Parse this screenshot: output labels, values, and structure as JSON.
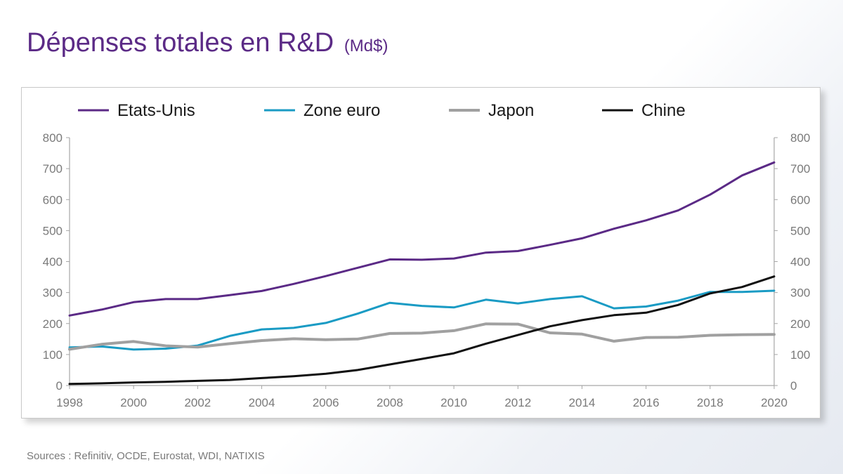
{
  "slide": {
    "title": "Dépenses totales en R&D",
    "title_unit": "(Md$)",
    "sources": "Sources : Refinitiv, OCDE, Eurostat, WDI, NATIXIS"
  },
  "chart_data": {
    "type": "line",
    "title": "Dépenses totales en R&D (Md$)",
    "xlabel": "",
    "ylabel": "",
    "x": [
      1998,
      1999,
      2000,
      2001,
      2002,
      2003,
      2004,
      2005,
      2006,
      2007,
      2008,
      2009,
      2010,
      2011,
      2012,
      2013,
      2014,
      2015,
      2016,
      2017,
      2018,
      2019,
      2020
    ],
    "xticks": [
      "1998",
      "2000",
      "2002",
      "2004",
      "2006",
      "2008",
      "2010",
      "2012",
      "2014",
      "2016",
      "2018",
      "2020"
    ],
    "ylim": [
      0,
      800
    ],
    "yticks": [
      "0",
      "100",
      "200",
      "300",
      "400",
      "500",
      "600",
      "700",
      "800"
    ],
    "legend_position": "top",
    "series": [
      {
        "name": "Etats-Unis",
        "color": "#5b2a86",
        "values": [
          226,
          245,
          269,
          279,
          279,
          292,
          305,
          328,
          353,
          380,
          407,
          406,
          410,
          429,
          434,
          454,
          475,
          506,
          533,
          565,
          616,
          678,
          720
        ]
      },
      {
        "name": "Zone euro",
        "color": "#1a9bc4",
        "values": [
          123,
          126,
          116,
          119,
          129,
          160,
          181,
          186,
          202,
          232,
          267,
          257,
          252,
          277,
          265,
          279,
          288,
          249,
          255,
          274,
          302,
          302,
          306
        ]
      },
      {
        "name": "Japon",
        "color": "#a0a0a0",
        "values": [
          117,
          133,
          142,
          128,
          124,
          135,
          145,
          151,
          148,
          150,
          168,
          169,
          177,
          199,
          198,
          170,
          166,
          143,
          155,
          156,
          162,
          164,
          165
        ]
      },
      {
        "name": "Chine",
        "color": "#111111",
        "values": [
          5,
          7,
          10,
          12,
          15,
          18,
          24,
          30,
          38,
          50,
          68,
          86,
          104,
          135,
          163,
          191,
          211,
          227,
          235,
          260,
          297,
          318,
          352
        ]
      }
    ]
  }
}
